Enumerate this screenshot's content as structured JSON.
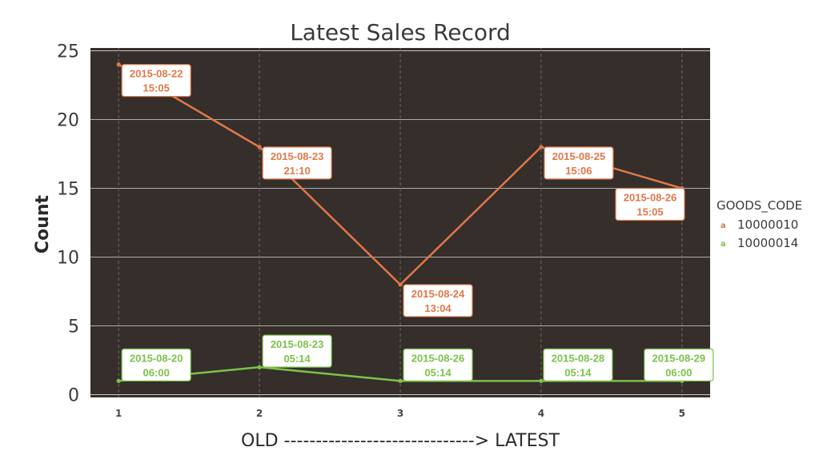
{
  "chart_data": {
    "type": "line",
    "title": "Latest Sales Record",
    "xlabel": "OLD ------------------------------> LATEST",
    "ylabel": "Count",
    "x": [
      1,
      2,
      3,
      4,
      5
    ],
    "x_tick_labels": [
      "1",
      "2",
      "3",
      "4",
      "5"
    ],
    "y_tick_labels": [
      "0",
      "5",
      "10",
      "15",
      "20",
      "25"
    ],
    "xlim": [
      0.8,
      5.2
    ],
    "ylim": [
      -0.2,
      25.2
    ],
    "grid": true,
    "legend": {
      "title": "GOODS_CODE",
      "placement": "right",
      "key_glyph": "a"
    },
    "series": [
      {
        "name": "10000010",
        "color": "#e07848",
        "values": [
          24,
          18,
          8,
          18,
          15
        ],
        "labels": [
          "2015-08-22\n15:05",
          "2015-08-23\n21:10",
          "2015-08-24\n13:04",
          "2015-08-25\n15:06",
          "2015-08-26\n15:05"
        ]
      },
      {
        "name": "10000014",
        "color": "#7cc24a",
        "values": [
          1,
          2,
          1,
          1,
          1
        ],
        "labels": [
          "2015-08-20\n06:00",
          "2015-08-23\n05:14",
          "2015-08-26\n05:14",
          "2015-08-28\n05:14",
          "2015-08-29\n06:00"
        ]
      }
    ]
  },
  "colors": {
    "panel_background": "#352e2b",
    "grid": "#d8d8d8",
    "label_fill": "#ffffff"
  }
}
